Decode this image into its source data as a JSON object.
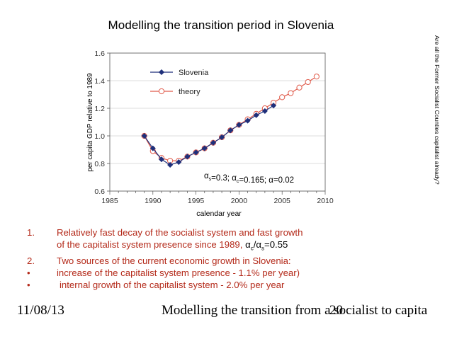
{
  "slide": {
    "title": "Modelling the transition period in Slovenia",
    "side_note": "Are all the Former Socialist Counties capitalist already?",
    "bullets": [
      {
        "marker": "1.",
        "text": "Relatively fast decay of the socialist system and fast growth",
        "cont_prefix": "of the capitalist system presence since 1989, ",
        "cont_math": "αc/αs=0.55"
      },
      {
        "marker": "2.",
        "text": "Two sources of the current economic growth in Slovenia:"
      },
      {
        "marker": "•",
        "text": " increase of the capitalist system presence - 1.1% per year)"
      },
      {
        "marker": "•",
        "text": "internal growth of the capitalist system - 2.0% per year"
      }
    ],
    "footer": {
      "date": "11/08/13",
      "title": "Modelling the transition from a socialist to capita",
      "page": "20"
    }
  },
  "chart_data": {
    "type": "line",
    "title": "",
    "xlabel": "calendar year",
    "ylabel": "per capita GDP relative to 1989",
    "xlim": [
      1985,
      2010
    ],
    "ylim": [
      0.6,
      1.6
    ],
    "x_ticks": [
      "1985",
      "1990",
      "1995",
      "2000",
      "2005",
      "2010"
    ],
    "y_ticks": [
      "0.6",
      "0.8",
      "1.0",
      "1.2",
      "1.4",
      "1.6"
    ],
    "grid": "horizontal",
    "legend_position": "top-left-inside",
    "annotation": "αs=0.3; αc=0.165; α=0.02",
    "series": [
      {
        "name": "Slovenia",
        "color": "#1f2f7a",
        "marker": "diamond-filled",
        "points": [
          [
            1989,
            1.0
          ],
          [
            1990,
            0.91
          ],
          [
            1991,
            0.83
          ],
          [
            1992,
            0.79
          ],
          [
            1993,
            0.81
          ],
          [
            1994,
            0.85
          ],
          [
            1995,
            0.88
          ],
          [
            1996,
            0.91
          ],
          [
            1997,
            0.95
          ],
          [
            1998,
            0.99
          ],
          [
            1999,
            1.04
          ],
          [
            2000,
            1.08
          ],
          [
            2001,
            1.11
          ],
          [
            2002,
            1.15
          ],
          [
            2003,
            1.18
          ],
          [
            2004,
            1.22
          ]
        ]
      },
      {
        "name": "theory",
        "color": "#e05a4a",
        "marker": "circle-open",
        "points": [
          [
            1989,
            1.0
          ],
          [
            1990,
            0.89
          ],
          [
            1991,
            0.84
          ],
          [
            1992,
            0.82
          ],
          [
            1993,
            0.82
          ],
          [
            1994,
            0.85
          ],
          [
            1995,
            0.88
          ],
          [
            1996,
            0.91
          ],
          [
            1997,
            0.95
          ],
          [
            1998,
            0.99
          ],
          [
            1999,
            1.04
          ],
          [
            2000,
            1.08
          ],
          [
            2001,
            1.12
          ],
          [
            2002,
            1.16
          ],
          [
            2003,
            1.2
          ],
          [
            2004,
            1.24
          ],
          [
            2005,
            1.28
          ],
          [
            2006,
            1.31
          ],
          [
            2007,
            1.35
          ],
          [
            2008,
            1.39
          ],
          [
            2009,
            1.43
          ]
        ]
      }
    ]
  }
}
